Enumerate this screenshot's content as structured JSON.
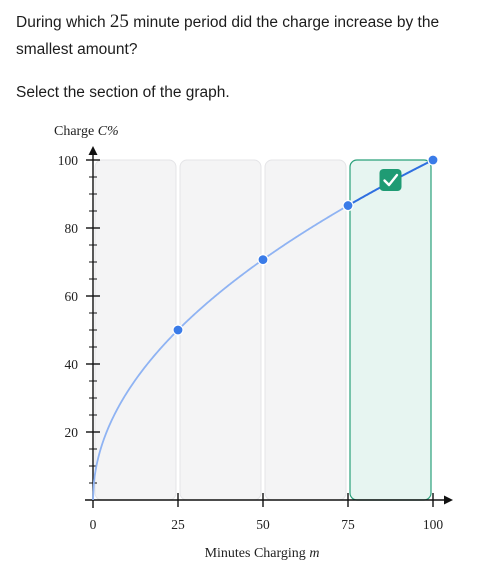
{
  "question": {
    "text_before": "During which ",
    "math_value": "25",
    "text_after": " minute period did the charge increase by the smallest amount?"
  },
  "instruction": "Select the section of the graph.",
  "chart_data": {
    "type": "line",
    "title": "",
    "ylabel_text": "Charge ",
    "ylabel_math": "C%",
    "xlabel_text": "Minutes Charging ",
    "xlabel_math": "m",
    "xlim": [
      0,
      100
    ],
    "ylim": [
      0,
      100
    ],
    "x_ticks": [
      0,
      25,
      50,
      75,
      100
    ],
    "y_ticks": [
      20,
      40,
      60,
      80,
      100
    ],
    "curve": "C = 10 * sqrt(m)",
    "points": [
      {
        "x": 25,
        "y": 50
      },
      {
        "x": 50,
        "y": 70.7
      },
      {
        "x": 75,
        "y": 86.6
      },
      {
        "x": 100,
        "y": 100
      }
    ],
    "sections": [
      {
        "from": 0,
        "to": 25,
        "selected": false
      },
      {
        "from": 25,
        "to": 50,
        "selected": false
      },
      {
        "from": 50,
        "to": 75,
        "selected": false
      },
      {
        "from": 75,
        "to": 100,
        "selected": true
      }
    ],
    "grid": false
  },
  "colors": {
    "curve": "#8fb3f3",
    "highlight_line": "#2f6fe0",
    "point": "#3a7be8",
    "section_fill": "#f4f4f5",
    "section_stroke": "#e4e4e7",
    "selected_fill": "#e7f5f1",
    "selected_stroke": "#2aa07a",
    "check_badge": "#1f9b74"
  },
  "icons": {
    "check": "check-icon"
  }
}
